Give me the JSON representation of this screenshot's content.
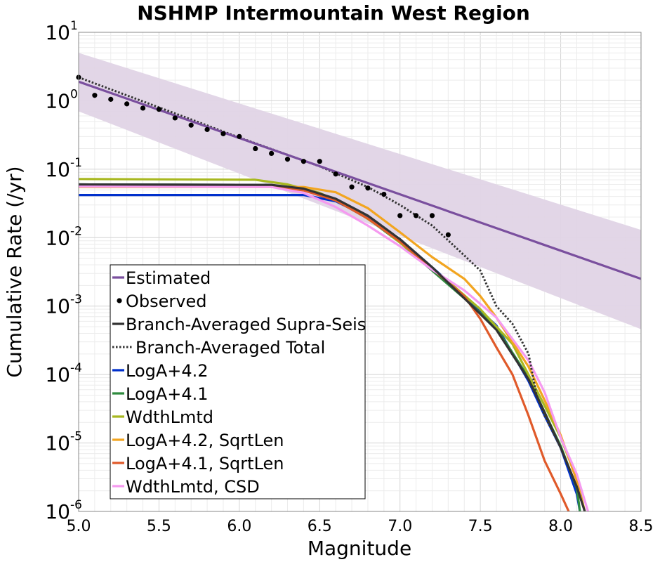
{
  "chart_data": {
    "type": "line",
    "title": "NSHMP Intermountain West Region",
    "xlabel": "Magnitude",
    "ylabel": "Cumulative Rate (/yr)",
    "xlim": [
      5.0,
      8.5
    ],
    "ylim": [
      1e-06,
      10
    ],
    "yscale": "log",
    "grid": true,
    "legend_position": "lower-left",
    "xticks": [
      {
        "value": 5.0,
        "label": "5.0"
      },
      {
        "value": 5.5,
        "label": "5.5"
      },
      {
        "value": 6.0,
        "label": "6.0"
      },
      {
        "value": 6.5,
        "label": "6.5"
      },
      {
        "value": 7.0,
        "label": "7.0"
      },
      {
        "value": 7.5,
        "label": "7.5"
      },
      {
        "value": 8.0,
        "label": "8.0"
      },
      {
        "value": 8.5,
        "label": "8.5"
      }
    ],
    "yticks": [
      {
        "value": 10,
        "base": "10",
        "exp": "1"
      },
      {
        "value": 1,
        "base": "10",
        "exp": "0"
      },
      {
        "value": 0.1,
        "base": "10",
        "exp": "-1"
      },
      {
        "value": 0.01,
        "base": "10",
        "exp": "-2"
      },
      {
        "value": 0.001,
        "base": "10",
        "exp": "-3"
      },
      {
        "value": 0.0001,
        "base": "10",
        "exp": "-4"
      },
      {
        "value": 1e-05,
        "base": "10",
        "exp": "-5"
      },
      {
        "value": 1e-06,
        "base": "10",
        "exp": "-6"
      }
    ],
    "uncertainty_band": {
      "color": "#e0d4e6",
      "lower": {
        "x": [
          5.0,
          8.5
        ],
        "y": [
          0.7,
          0.00046
        ]
      },
      "upper": {
        "x": [
          5.0,
          8.5
        ],
        "y": [
          5.0,
          0.013
        ]
      }
    },
    "series": [
      {
        "name": "Estimated",
        "color": "#7a4f9e",
        "style": "line",
        "x": [
          5.0,
          8.5
        ],
        "y": [
          1.9,
          0.0025
        ]
      },
      {
        "name": "Observed",
        "color": "#000000",
        "style": "points",
        "x": [
          5.0,
          5.1,
          5.2,
          5.3,
          5.4,
          5.5,
          5.6,
          5.7,
          5.8,
          5.9,
          6.0,
          6.1,
          6.2,
          6.3,
          6.4,
          6.5,
          6.6,
          6.7,
          6.8,
          6.9,
          7.0,
          7.1,
          7.2,
          7.3
        ],
        "y": [
          2.2,
          1.2,
          1.05,
          0.9,
          0.78,
          0.75,
          0.56,
          0.44,
          0.38,
          0.33,
          0.3,
          0.2,
          0.17,
          0.14,
          0.13,
          0.13,
          0.085,
          0.055,
          0.053,
          0.043,
          0.021,
          0.021,
          0.021,
          0.011
        ]
      },
      {
        "name": "Branch-Averaged Supra-Seis",
        "color": "#333333",
        "style": "line",
        "x": [
          5.0,
          6.2,
          6.4,
          6.6,
          6.8,
          7.0,
          7.2,
          7.4,
          7.6,
          7.8,
          7.9,
          8.0,
          8.1,
          8.15
        ],
        "y": [
          0.06,
          0.059,
          0.052,
          0.037,
          0.021,
          0.0095,
          0.0037,
          0.0013,
          0.00045,
          8.5e-05,
          2.8e-05,
          8.5e-06,
          2.3e-06,
          1e-06
        ]
      },
      {
        "name": "Branch-Averaged Total",
        "color": "#333333",
        "style": "dotted",
        "x": [
          5.0,
          5.5,
          6.0,
          6.5,
          6.8,
          7.0,
          7.2,
          7.4,
          7.5,
          7.6,
          7.7,
          7.8,
          7.85,
          7.9,
          8.0,
          8.1,
          8.15
        ],
        "y": [
          2.2,
          0.8,
          0.29,
          0.11,
          0.055,
          0.03,
          0.015,
          0.0055,
          0.0033,
          0.001,
          0.00055,
          0.0002,
          5e-05,
          2.5e-05,
          8.5e-06,
          2.3e-06,
          1e-06
        ]
      },
      {
        "name": "LogA+4.2",
        "color": "#0030cc",
        "style": "line",
        "x": [
          5.0,
          6.4,
          6.6,
          6.8,
          7.0,
          7.2,
          7.4,
          7.6,
          7.8,
          7.9,
          8.0,
          8.1,
          8.12
        ],
        "y": [
          0.042,
          0.042,
          0.034,
          0.02,
          0.0095,
          0.0037,
          0.0014,
          0.00052,
          8e-05,
          2.5e-05,
          8.5e-06,
          1.8e-06,
          1e-06
        ]
      },
      {
        "name": "LogA+4.1",
        "color": "#2e8b3e",
        "style": "line",
        "x": [
          5.0,
          6.2,
          6.4,
          6.6,
          6.8,
          7.0,
          7.2,
          7.4,
          7.6,
          7.8,
          7.9,
          8.0,
          8.1,
          8.12
        ],
        "y": [
          0.06,
          0.059,
          0.05,
          0.035,
          0.019,
          0.0085,
          0.0033,
          0.0013,
          0.00048,
          9e-05,
          2.8e-05,
          9e-06,
          2.2e-06,
          1e-06
        ]
      },
      {
        "name": "WdthLmtd",
        "color": "#a8b820",
        "style": "line",
        "x": [
          5.0,
          6.1,
          6.3,
          6.5,
          6.7,
          6.9,
          7.1,
          7.3,
          7.5,
          7.7,
          7.9,
          8.0,
          8.1,
          8.15
        ],
        "y": [
          0.072,
          0.07,
          0.06,
          0.045,
          0.027,
          0.013,
          0.0055,
          0.0023,
          0.0009,
          0.00028,
          3.5e-05,
          1.2e-05,
          3e-06,
          1e-06
        ]
      },
      {
        "name": "LogA+4.2, SqrtLen",
        "color": "#f2a520",
        "style": "line",
        "x": [
          5.0,
          6.4,
          6.6,
          6.8,
          7.0,
          7.2,
          7.4,
          7.5,
          7.6,
          7.8,
          7.9,
          8.0,
          8.1,
          8.15
        ],
        "y": [
          0.055,
          0.055,
          0.046,
          0.027,
          0.012,
          0.0052,
          0.0025,
          0.0014,
          0.00068,
          0.00013,
          4.2e-05,
          1.3e-05,
          2.8e-06,
          1e-06
        ]
      },
      {
        "name": "LogA+4.1, SqrtLen",
        "color": "#e05a2a",
        "style": "line",
        "x": [
          5.0,
          6.2,
          6.4,
          6.6,
          6.8,
          7.0,
          7.2,
          7.4,
          7.5,
          7.6,
          7.7,
          7.8,
          7.9,
          8.0,
          8.05
        ],
        "y": [
          0.057,
          0.056,
          0.049,
          0.035,
          0.019,
          0.0088,
          0.0035,
          0.0014,
          0.00065,
          0.00025,
          0.0001,
          2.5e-05,
          5.5e-06,
          1.8e-06,
          1e-06
        ]
      },
      {
        "name": "WdthLmtd, CSD",
        "color": "#f59af0",
        "style": "line",
        "x": [
          5.0,
          6.2,
          6.4,
          6.6,
          6.8,
          7.0,
          7.2,
          7.4,
          7.6,
          7.8,
          7.9,
          8.0,
          8.1,
          8.17
        ],
        "y": [
          0.056,
          0.055,
          0.045,
          0.028,
          0.015,
          0.0075,
          0.0034,
          0.0017,
          0.00068,
          0.00016,
          5.5e-05,
          1.2e-05,
          3.5e-06,
          1e-06
        ]
      }
    ]
  }
}
